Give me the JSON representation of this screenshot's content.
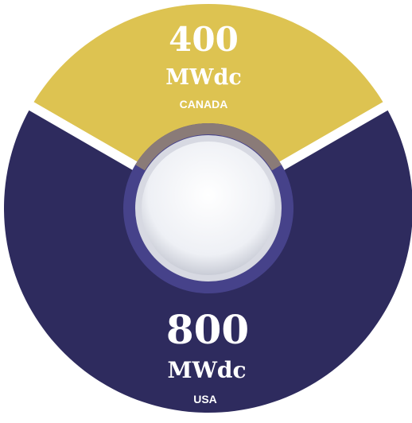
{
  "chart_data": {
    "type": "pie",
    "categories": [
      "CANADA",
      "USA"
    ],
    "values": [
      400,
      800
    ],
    "unit": "MWdc",
    "colors": {
      "CANADA": "#DDC351",
      "USA": "#2E2B5E",
      "inner_ring": "#46428A",
      "hub": "#F3F4F8"
    },
    "labels": [
      {
        "value": "400",
        "unit": "MWdc",
        "name": "CANADA"
      },
      {
        "value": "800",
        "unit": "MWdc",
        "name": "USA"
      }
    ]
  }
}
